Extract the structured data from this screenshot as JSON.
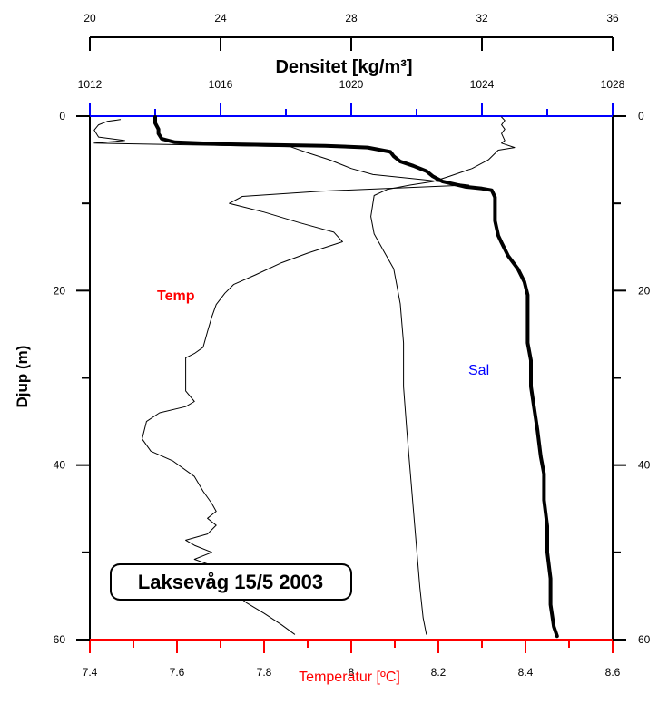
{
  "chart_data": {
    "type": "line",
    "station_label": "Laksevåg 15/5 2003",
    "ylabel": "Djup (m)",
    "colors": {
      "temperature": "#ff0000",
      "salinity": "#0000ff",
      "density": "#000000",
      "annotation": "#000000"
    },
    "axes": {
      "depth": {
        "ylim": [
          0,
          60
        ],
        "ticks": [
          0,
          20,
          40,
          60
        ],
        "inverted": true
      },
      "temperature": {
        "label": "Temperatur [ºC]",
        "xlim": [
          7.4,
          8.6
        ],
        "ticks": [
          7.4,
          7.6,
          7.8,
          8,
          8.2,
          8.4,
          8.6
        ],
        "tick_labels": [
          "7.4",
          "7.6",
          "7.8",
          "8",
          "8.2",
          "8.4",
          "8.6"
        ],
        "position": "bottom",
        "color": "#ff0000"
      },
      "salinity": {
        "label": "",
        "xlim": [
          20,
          36
        ],
        "ticks": [
          20,
          24,
          28,
          32,
          36
        ],
        "tick_labels": [
          "20",
          "24",
          "28",
          "32",
          "36"
        ],
        "position": "top (outer)",
        "color": "#000000"
      },
      "density": {
        "label": "Densitet [kg/m³]",
        "xlim": [
          1012,
          1028
        ],
        "ticks": [
          1012,
          1016,
          1020,
          1024,
          1028
        ],
        "tick_labels": [
          "1012",
          "1016",
          "1020",
          "1024",
          "1028"
        ],
        "position": "top (inner)",
        "color": "#0000ff"
      }
    },
    "series": [
      {
        "name": "Temp",
        "axis": "temperature",
        "points": [
          [
            7.47,
            0.4
          ],
          [
            7.44,
            0.6
          ],
          [
            7.42,
            1
          ],
          [
            7.41,
            1.6
          ],
          [
            7.42,
            2.4
          ],
          [
            7.48,
            2.8
          ],
          [
            7.41,
            3.1
          ],
          [
            7.86,
            3.5
          ],
          [
            7.9,
            4.2
          ],
          [
            7.95,
            5
          ],
          [
            8.0,
            6
          ],
          [
            8.05,
            6.7
          ],
          [
            8.17,
            7.3
          ],
          [
            8.27,
            7.9
          ],
          [
            7.93,
            8.6
          ],
          [
            7.75,
            9.2
          ],
          [
            7.72,
            10
          ],
          [
            7.8,
            11
          ],
          [
            7.88,
            12.2
          ],
          [
            7.96,
            13.3
          ],
          [
            7.98,
            14.4
          ],
          [
            7.9,
            15.7
          ],
          [
            7.84,
            16.8
          ],
          [
            7.78,
            18.2
          ],
          [
            7.73,
            19.3
          ],
          [
            7.71,
            20.3
          ],
          [
            7.69,
            21.6
          ],
          [
            7.68,
            23
          ],
          [
            7.67,
            24.7
          ],
          [
            7.66,
            26.5
          ],
          [
            7.64,
            27.2
          ],
          [
            7.62,
            27.7
          ],
          [
            7.62,
            29.5
          ],
          [
            7.62,
            31.5
          ],
          [
            7.64,
            32.7
          ],
          [
            7.62,
            33.3
          ],
          [
            7.56,
            34
          ],
          [
            7.53,
            35
          ],
          [
            7.52,
            37
          ],
          [
            7.54,
            38.4
          ],
          [
            7.59,
            39.5
          ],
          [
            7.64,
            41.3
          ],
          [
            7.66,
            43
          ],
          [
            7.68,
            44.4
          ],
          [
            7.69,
            45.3
          ],
          [
            7.67,
            46.1
          ],
          [
            7.69,
            46.9
          ],
          [
            7.67,
            47.9
          ],
          [
            7.62,
            48.6
          ],
          [
            7.64,
            49.2
          ],
          [
            7.68,
            50
          ],
          [
            7.64,
            50.8
          ],
          [
            7.68,
            51.5
          ],
          [
            7.7,
            52.5
          ],
          [
            7.71,
            53.5
          ],
          [
            7.73,
            54.6
          ],
          [
            7.76,
            55.8
          ],
          [
            7.8,
            57
          ],
          [
            7.84,
            58.3
          ],
          [
            7.87,
            59.4
          ]
        ]
      },
      {
        "name": "Sal",
        "axis": "salinity",
        "points": [
          [
            32.6,
            0.1
          ],
          [
            32.7,
            0.5
          ],
          [
            32.6,
            1
          ],
          [
            32.7,
            1.5
          ],
          [
            32.6,
            2
          ],
          [
            32.7,
            2.8
          ],
          [
            32.6,
            3.1
          ],
          [
            33.0,
            3.6
          ],
          [
            32.5,
            3.9
          ],
          [
            32.2,
            5
          ],
          [
            31.7,
            6
          ],
          [
            31.0,
            6.9
          ],
          [
            30.5,
            7.5
          ],
          [
            29.8,
            7.9
          ],
          [
            29.1,
            8.4
          ],
          [
            28.7,
            9.1
          ],
          [
            28.6,
            11.5
          ],
          [
            28.7,
            13.5
          ],
          [
            29.0,
            15.5
          ],
          [
            29.3,
            17.5
          ],
          [
            29.4,
            19.5
          ],
          [
            29.5,
            21.5
          ],
          [
            29.6,
            26
          ],
          [
            29.6,
            31
          ],
          [
            29.7,
            36
          ],
          [
            29.8,
            40.5
          ],
          [
            29.9,
            45
          ],
          [
            30.0,
            49.5
          ],
          [
            30.1,
            54
          ],
          [
            30.2,
            57.5
          ],
          [
            30.3,
            59.4
          ]
        ]
      },
      {
        "name": "Densitet",
        "axis": "density",
        "points": [
          [
            1014.0,
            0.1
          ],
          [
            1014.0,
            0.8
          ],
          [
            1014.1,
            1.5
          ],
          [
            1014.1,
            2
          ],
          [
            1014.2,
            2.6
          ],
          [
            1014.6,
            3
          ],
          [
            1016.0,
            3.2
          ],
          [
            1019.2,
            3.4
          ],
          [
            1020.5,
            3.6
          ],
          [
            1021.2,
            4.1
          ],
          [
            1021.3,
            4.6
          ],
          [
            1021.5,
            5.2
          ],
          [
            1021.9,
            5.7
          ],
          [
            1022.3,
            6.3
          ],
          [
            1022.5,
            6.9
          ],
          [
            1022.8,
            7.5
          ],
          [
            1023.5,
            8.1
          ],
          [
            1024.0,
            8.3
          ],
          [
            1024.3,
            8.5
          ],
          [
            1024.4,
            9.3
          ],
          [
            1024.4,
            12
          ],
          [
            1024.5,
            13.7
          ],
          [
            1024.6,
            14.5
          ],
          [
            1024.8,
            16
          ],
          [
            1025.1,
            17.5
          ],
          [
            1025.3,
            19
          ],
          [
            1025.4,
            20.5
          ],
          [
            1025.4,
            23
          ],
          [
            1025.4,
            26
          ],
          [
            1025.5,
            28
          ],
          [
            1025.5,
            31
          ],
          [
            1025.6,
            33.5
          ],
          [
            1025.7,
            36
          ],
          [
            1025.8,
            39
          ],
          [
            1025.9,
            41
          ],
          [
            1025.9,
            44
          ],
          [
            1026.0,
            47
          ],
          [
            1026.0,
            50
          ],
          [
            1026.1,
            53
          ],
          [
            1026.1,
            56
          ],
          [
            1026.2,
            58.5
          ],
          [
            1026.3,
            59.6
          ]
        ]
      }
    ]
  }
}
